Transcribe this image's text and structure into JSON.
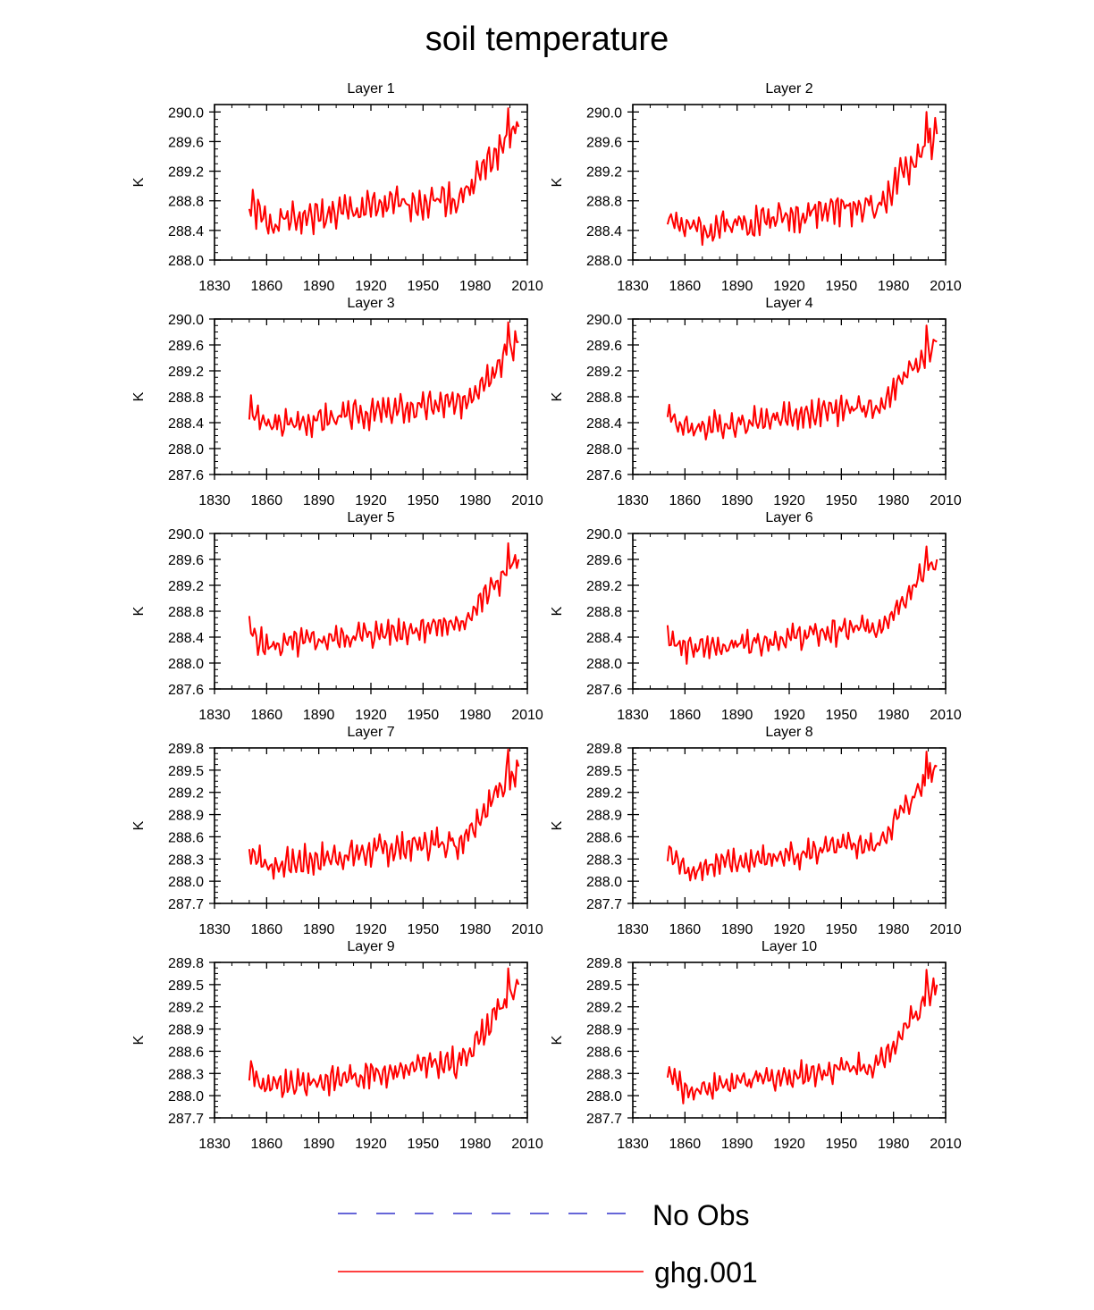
{
  "figure": {
    "title": "soil temperature",
    "legend": [
      {
        "label": "No Obs",
        "color": "#3333cc",
        "dash": "dashed"
      },
      {
        "label": "ghg.001",
        "color": "#ff0000",
        "dash": "solid"
      }
    ]
  },
  "chart_data": [
    {
      "type": "line",
      "title": "Layer 1",
      "ylabel": "K",
      "xlim": [
        1830,
        2010
      ],
      "ylim": [
        288.0,
        290.1
      ],
      "yticks": [
        288.0,
        288.4,
        288.8,
        289.2,
        289.6,
        290.0
      ],
      "ytick_labels": [
        "288.0",
        "288.4",
        "288.8",
        "289.2",
        "289.6",
        "290.0"
      ],
      "xticks": [
        1830,
        1860,
        1890,
        1920,
        1950,
        1980,
        2010
      ],
      "xtick_labels": [
        "1830",
        "1860",
        "1890",
        "1920",
        "1950",
        "1980",
        "2010"
      ],
      "series": [
        {
          "name": "ghg.001",
          "color": "#ff0000",
          "start": 288.75,
          "end": 289.8,
          "peak": 290.05,
          "amp": 0.17,
          "seed": 1,
          "x": [
            1850,
            2005
          ]
        }
      ]
    },
    {
      "type": "line",
      "title": "Layer 2",
      "ylabel": "K",
      "xlim": [
        1830,
        2010
      ],
      "ylim": [
        288.0,
        290.1
      ],
      "yticks": [
        288.0,
        288.4,
        288.8,
        289.2,
        289.6,
        290.0
      ],
      "ytick_labels": [
        "288.0",
        "288.4",
        "288.8",
        "289.2",
        "289.6",
        "290.0"
      ],
      "xticks": [
        1830,
        1860,
        1890,
        1920,
        1950,
        1980,
        2010
      ],
      "xtick_labels": [
        "1830",
        "1860",
        "1890",
        "1920",
        "1950",
        "1980",
        "2010"
      ],
      "series": [
        {
          "name": "ghg.001",
          "color": "#ff0000",
          "start": 288.65,
          "end": 289.7,
          "peak": 290.0,
          "amp": 0.17,
          "seed": 2,
          "x": [
            1850,
            2005
          ]
        }
      ]
    },
    {
      "type": "line",
      "title": "Layer 3",
      "ylabel": "K",
      "xlim": [
        1830,
        2010
      ],
      "ylim": [
        287.6,
        290.0
      ],
      "yticks": [
        287.6,
        288.0,
        288.4,
        288.8,
        289.2,
        289.6,
        290.0
      ],
      "ytick_labels": [
        "287.6",
        "288.0",
        "288.4",
        "288.8",
        "289.2",
        "289.6",
        "290.0"
      ],
      "xticks": [
        1830,
        1860,
        1890,
        1920,
        1950,
        1980,
        2010
      ],
      "xtick_labels": [
        "1830",
        "1860",
        "1890",
        "1920",
        "1950",
        "1980",
        "2010"
      ],
      "series": [
        {
          "name": "ghg.001",
          "color": "#ff0000",
          "start": 288.6,
          "end": 289.65,
          "peak": 289.95,
          "amp": 0.17,
          "seed": 3,
          "x": [
            1850,
            2005
          ]
        }
      ]
    },
    {
      "type": "line",
      "title": "Layer 4",
      "ylabel": "K",
      "xlim": [
        1830,
        2010
      ],
      "ylim": [
        287.6,
        290.0
      ],
      "yticks": [
        287.6,
        288.0,
        288.4,
        288.8,
        289.2,
        289.6,
        290.0
      ],
      "ytick_labels": [
        "287.6",
        "288.0",
        "288.4",
        "288.8",
        "289.2",
        "289.6",
        "290.0"
      ],
      "xticks": [
        1830,
        1860,
        1890,
        1920,
        1950,
        1980,
        2010
      ],
      "xtick_labels": [
        "1830",
        "1860",
        "1890",
        "1920",
        "1950",
        "1980",
        "2010"
      ],
      "series": [
        {
          "name": "ghg.001",
          "color": "#ff0000",
          "start": 288.55,
          "end": 289.65,
          "peak": 289.9,
          "amp": 0.16,
          "seed": 4,
          "x": [
            1850,
            2005
          ]
        }
      ]
    },
    {
      "type": "line",
      "title": "Layer 5",
      "ylabel": "K",
      "xlim": [
        1830,
        2010
      ],
      "ylim": [
        287.6,
        290.0
      ],
      "yticks": [
        287.6,
        288.0,
        288.4,
        288.8,
        289.2,
        289.6,
        290.0
      ],
      "ytick_labels": [
        "287.6",
        "288.0",
        "288.4",
        "288.8",
        "289.2",
        "289.6",
        "290.0"
      ],
      "xticks": [
        1830,
        1860,
        1890,
        1920,
        1950,
        1980,
        2010
      ],
      "xtick_labels": [
        "1830",
        "1860",
        "1890",
        "1920",
        "1950",
        "1980",
        "2010"
      ],
      "series": [
        {
          "name": "ghg.001",
          "color": "#ff0000",
          "start": 288.5,
          "end": 289.6,
          "peak": 289.85,
          "amp": 0.16,
          "seed": 5,
          "x": [
            1850,
            2005
          ]
        }
      ]
    },
    {
      "type": "line",
      "title": "Layer 6",
      "ylabel": "K",
      "xlim": [
        1830,
        2010
      ],
      "ylim": [
        287.6,
        290.0
      ],
      "yticks": [
        287.6,
        288.0,
        288.4,
        288.8,
        289.2,
        289.6,
        290.0
      ],
      "ytick_labels": [
        "287.6",
        "288.0",
        "288.4",
        "288.8",
        "289.2",
        "289.6",
        "290.0"
      ],
      "xticks": [
        1830,
        1860,
        1890,
        1920,
        1950,
        1980,
        2010
      ],
      "xtick_labels": [
        "1830",
        "1860",
        "1890",
        "1920",
        "1950",
        "1980",
        "2010"
      ],
      "series": [
        {
          "name": "ghg.001",
          "color": "#ff0000",
          "start": 288.45,
          "end": 289.6,
          "peak": 289.8,
          "amp": 0.15,
          "seed": 6,
          "x": [
            1850,
            2005
          ]
        }
      ]
    },
    {
      "type": "line",
      "title": "Layer 7",
      "ylabel": "K",
      "xlim": [
        1830,
        2010
      ],
      "ylim": [
        287.7,
        289.8
      ],
      "yticks": [
        287.7,
        288.0,
        288.3,
        288.6,
        288.9,
        289.2,
        289.5,
        289.8
      ],
      "ytick_labels": [
        "287.7",
        "288.0",
        "288.3",
        "288.6",
        "288.9",
        "289.2",
        "289.5",
        "289.8"
      ],
      "xticks": [
        1830,
        1860,
        1890,
        1920,
        1950,
        1980,
        2010
      ],
      "xtick_labels": [
        "1830",
        "1860",
        "1890",
        "1920",
        "1950",
        "1980",
        "2010"
      ],
      "series": [
        {
          "name": "ghg.001",
          "color": "#ff0000",
          "start": 288.45,
          "end": 289.55,
          "peak": 289.78,
          "amp": 0.15,
          "seed": 7,
          "x": [
            1850,
            2005
          ]
        }
      ]
    },
    {
      "type": "line",
      "title": "Layer 8",
      "ylabel": "K",
      "xlim": [
        1830,
        2010
      ],
      "ylim": [
        287.7,
        289.8
      ],
      "yticks": [
        287.7,
        288.0,
        288.3,
        288.6,
        288.9,
        289.2,
        289.5,
        289.8
      ],
      "ytick_labels": [
        "287.7",
        "288.0",
        "288.3",
        "288.6",
        "288.9",
        "289.2",
        "289.5",
        "289.8"
      ],
      "xticks": [
        1830,
        1860,
        1890,
        1920,
        1950,
        1980,
        2010
      ],
      "xtick_labels": [
        "1830",
        "1860",
        "1890",
        "1920",
        "1950",
        "1980",
        "2010"
      ],
      "series": [
        {
          "name": "ghg.001",
          "color": "#ff0000",
          "start": 288.4,
          "end": 289.55,
          "peak": 289.75,
          "amp": 0.14,
          "seed": 8,
          "x": [
            1850,
            2005
          ]
        }
      ]
    },
    {
      "type": "line",
      "title": "Layer 9",
      "ylabel": "K",
      "xlim": [
        1830,
        2010
      ],
      "ylim": [
        287.7,
        289.8
      ],
      "yticks": [
        287.7,
        288.0,
        288.3,
        288.6,
        288.9,
        289.2,
        289.5,
        289.8
      ],
      "ytick_labels": [
        "287.7",
        "288.0",
        "288.3",
        "288.6",
        "288.9",
        "289.2",
        "289.5",
        "289.8"
      ],
      "xticks": [
        1830,
        1860,
        1890,
        1920,
        1950,
        1980,
        2010
      ],
      "xtick_labels": [
        "1830",
        "1860",
        "1890",
        "1920",
        "1950",
        "1980",
        "2010"
      ],
      "series": [
        {
          "name": "ghg.001",
          "color": "#ff0000",
          "start": 288.35,
          "end": 289.5,
          "peak": 289.72,
          "amp": 0.14,
          "seed": 9,
          "x": [
            1850,
            2005
          ]
        }
      ]
    },
    {
      "type": "line",
      "title": "Layer 10",
      "ylabel": "K",
      "xlim": [
        1830,
        2010
      ],
      "ylim": [
        287.7,
        289.8
      ],
      "yticks": [
        287.7,
        288.0,
        288.3,
        288.6,
        288.9,
        289.2,
        289.5,
        289.8
      ],
      "ytick_labels": [
        "287.7",
        "288.0",
        "288.3",
        "288.6",
        "288.9",
        "289.2",
        "289.5",
        "289.8"
      ],
      "xticks": [
        1830,
        1860,
        1890,
        1920,
        1950,
        1980,
        2010
      ],
      "xtick_labels": [
        "1830",
        "1860",
        "1890",
        "1920",
        "1950",
        "1980",
        "2010"
      ],
      "series": [
        {
          "name": "ghg.001",
          "color": "#ff0000",
          "start": 288.32,
          "end": 289.5,
          "peak": 289.7,
          "amp": 0.13,
          "seed": 10,
          "x": [
            1850,
            2005
          ]
        }
      ]
    }
  ]
}
